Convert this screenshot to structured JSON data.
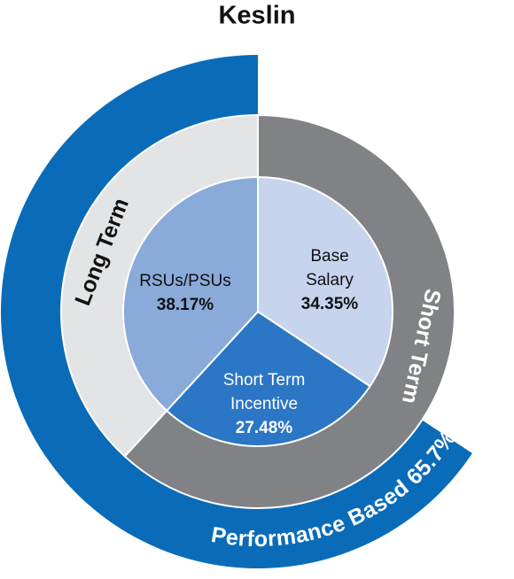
{
  "chart_data": {
    "type": "pie",
    "title": "Keslin",
    "categories": [
      [
        "Base",
        "Salary"
      ],
      [
        "Short Term",
        "Incentive"
      ],
      [
        "RSUs/PSUs"
      ]
    ],
    "values": [
      34.35,
      27.48,
      38.17
    ],
    "value_labels": [
      "34.35%",
      "27.48%",
      "38.17%"
    ],
    "colors": [
      "#c6d4ee",
      "#2b76c5",
      "#8aaad9"
    ],
    "text_colors": [
      "#111111",
      "#ffffff",
      "#111111"
    ],
    "term_ring": {
      "categories": [
        "Short Term",
        "Long Term"
      ],
      "values": [
        61.83,
        38.17
      ],
      "colors": [
        "#808285",
        "#e3e4e5"
      ],
      "text_colors": [
        "#ffffff",
        "#111111"
      ]
    },
    "performance_ring": {
      "name": "Performance Based",
      "value": 65.7,
      "value_label": "65.7%",
      "color": "#0a6cb8"
    }
  }
}
